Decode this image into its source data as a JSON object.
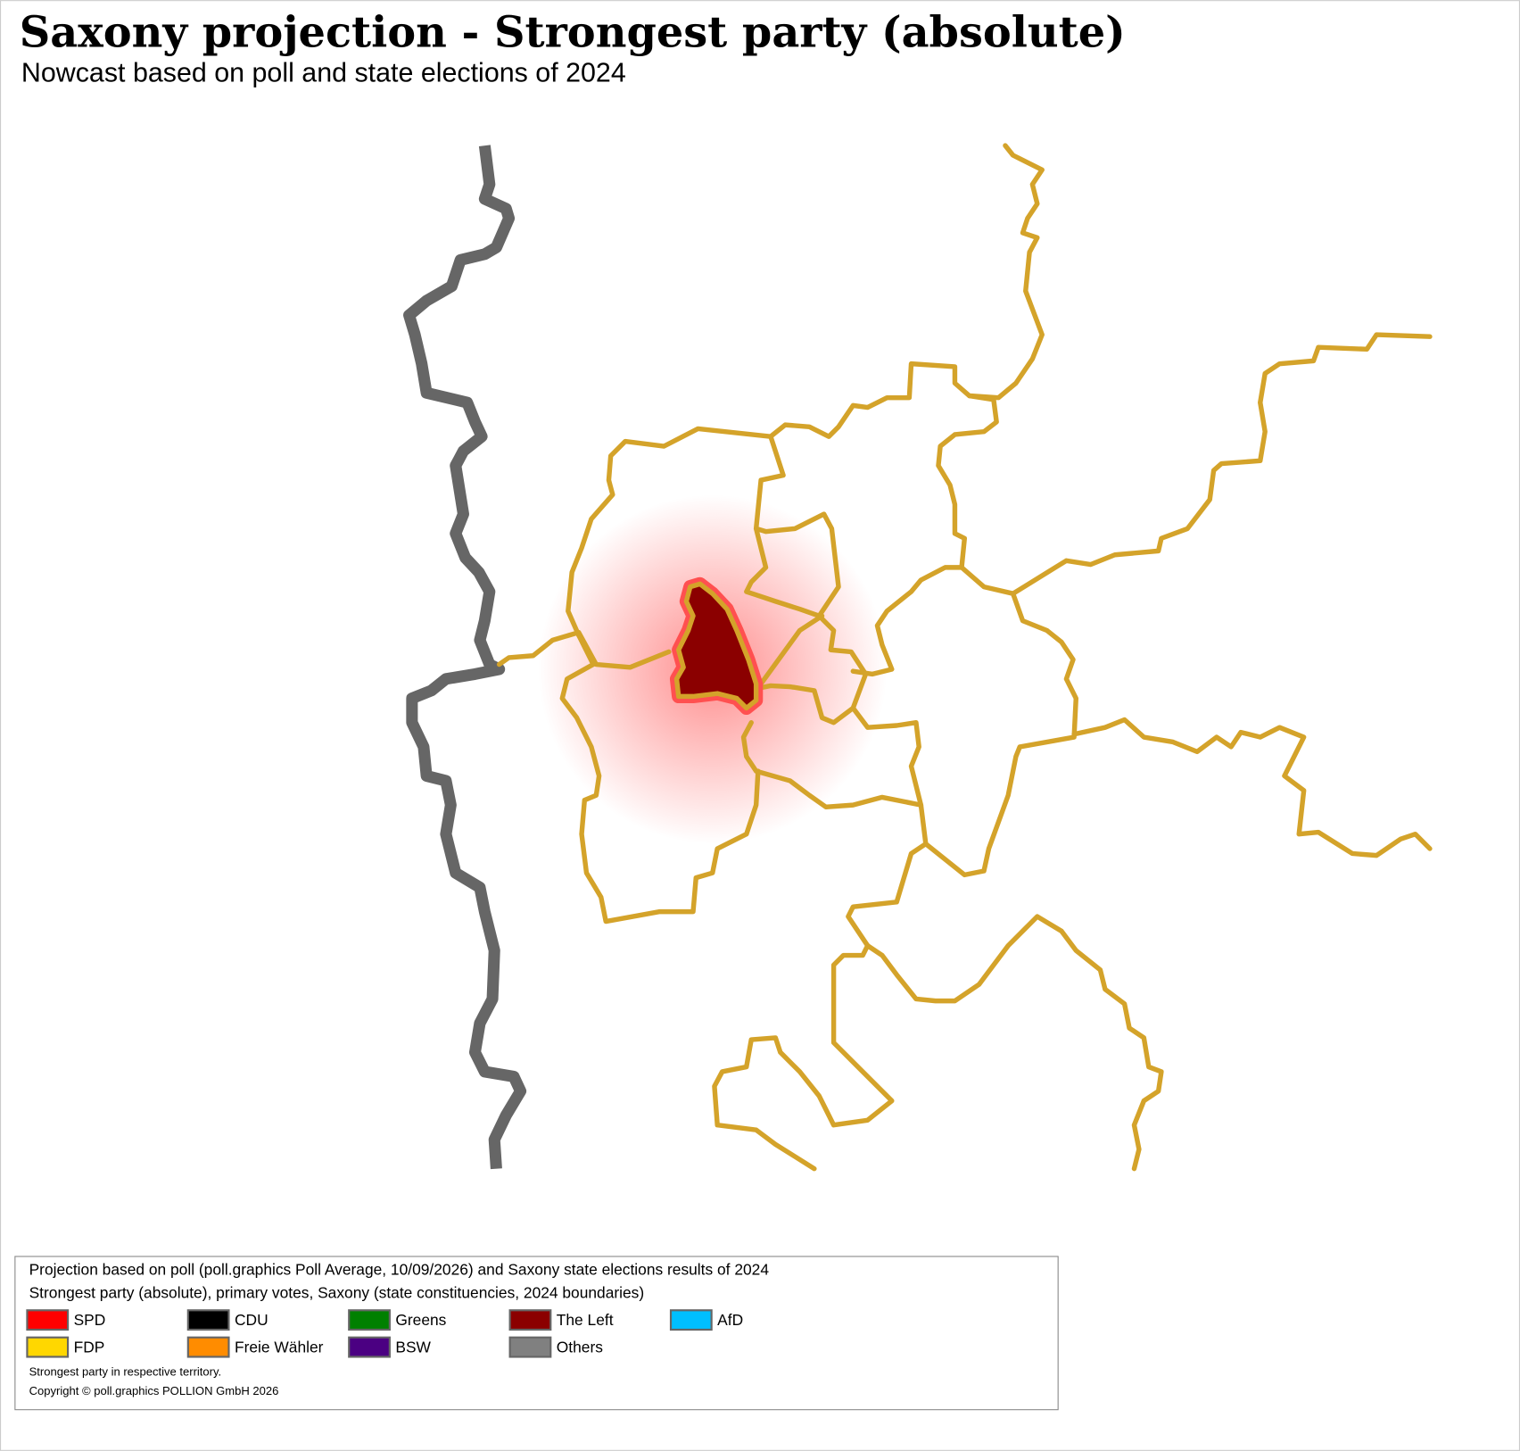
{
  "header": {
    "title": "Saxony projection - Strongest party (absolute)",
    "subtitle": "Nowcast based on poll and state elections of 2024"
  },
  "legend": {
    "lines": [
      "Projection based on poll (poll.graphics Poll Average, 10/09/2026) and Saxony state elections results of 2024",
      "Strongest party (absolute), primary votes, Saxony (state constituencies, 2024 boundaries)"
    ],
    "items": [
      {
        "name": "SPD",
        "color": "#ff0000"
      },
      {
        "name": "CDU",
        "color": "#000000"
      },
      {
        "name": "Greens",
        "color": "#008000"
      },
      {
        "name": "The Left",
        "color": "#8b0000"
      },
      {
        "name": "AfD",
        "color": "#00bfff"
      },
      {
        "name": "FDP",
        "color": "#ffd700"
      },
      {
        "name": "Freie Wähler",
        "color": "#ff8c00"
      },
      {
        "name": "BSW",
        "color": "#4b0082"
      },
      {
        "name": "Others",
        "color": "#808080"
      }
    ],
    "notes": [
      "Strongest party in respective territory.",
      "Copyright © poll.graphics POLLION GmbH 2026"
    ]
  }
}
